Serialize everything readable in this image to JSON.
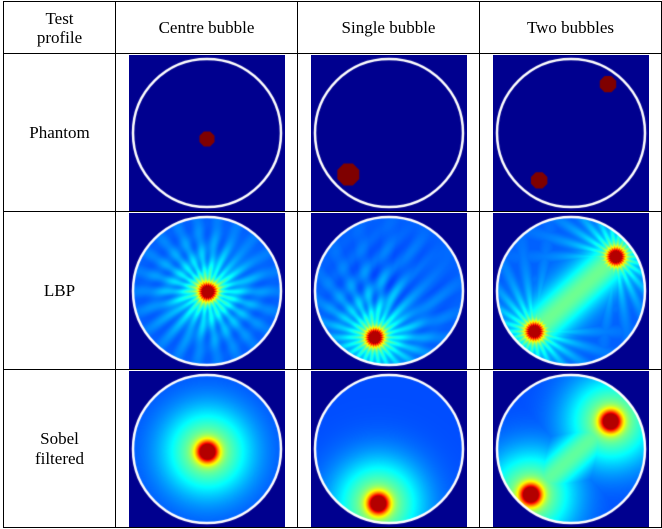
{
  "table": {
    "header": {
      "corner": [
        "Test",
        "profile"
      ],
      "columns": [
        "Centre bubble",
        "Single bubble",
        "Two bubbles"
      ]
    },
    "rows": [
      {
        "label": [
          "Phantom"
        ]
      },
      {
        "label": [
          "LBP"
        ]
      },
      {
        "label": [
          "Sobel",
          "filtered"
        ]
      }
    ]
  },
  "colors": {
    "background_blue": "#00008f",
    "bubble_red": "#7f0000",
    "ring_white": "#ffffff",
    "border": "#000000"
  },
  "images": [
    {
      "row": "Phantom",
      "column": "Centre bubble",
      "kind": "phantom",
      "bubbles": [
        {
          "x": 0.0,
          "y": 0.08,
          "r": 0.11
        }
      ]
    },
    {
      "row": "Phantom",
      "column": "Single bubble",
      "kind": "phantom",
      "bubbles": [
        {
          "x": -0.55,
          "y": 0.56,
          "r": 0.16
        }
      ]
    },
    {
      "row": "Phantom",
      "column": "Two bubbles",
      "kind": "phantom",
      "bubbles": [
        {
          "x": 0.5,
          "y": -0.66,
          "r": 0.12
        },
        {
          "x": -0.43,
          "y": 0.64,
          "r": 0.12
        }
      ]
    },
    {
      "row": "LBP",
      "column": "Centre bubble",
      "kind": "lbp",
      "bubbles": [
        {
          "x": 0.0,
          "y": 0.0
        }
      ]
    },
    {
      "row": "LBP",
      "column": "Single bubble",
      "kind": "lbp",
      "bubbles": [
        {
          "x": -0.2,
          "y": 0.62
        }
      ]
    },
    {
      "row": "LBP",
      "column": "Two bubbles",
      "kind": "lbp",
      "bubbles": [
        {
          "x": 0.6,
          "y": -0.47
        },
        {
          "x": -0.5,
          "y": 0.54
        }
      ]
    },
    {
      "row": "Sobel filtered",
      "column": "Centre bubble",
      "kind": "sobel",
      "bubbles": [
        {
          "x": 0.0,
          "y": 0.03
        }
      ]
    },
    {
      "row": "Sobel filtered",
      "column": "Single bubble",
      "kind": "sobel",
      "bubbles": [
        {
          "x": -0.15,
          "y": 0.73
        }
      ]
    },
    {
      "row": "Sobel filtered",
      "column": "Two bubbles",
      "kind": "sobel",
      "bubbles": [
        {
          "x": 0.53,
          "y": -0.38
        },
        {
          "x": -0.55,
          "y": 0.61
        }
      ]
    }
  ]
}
